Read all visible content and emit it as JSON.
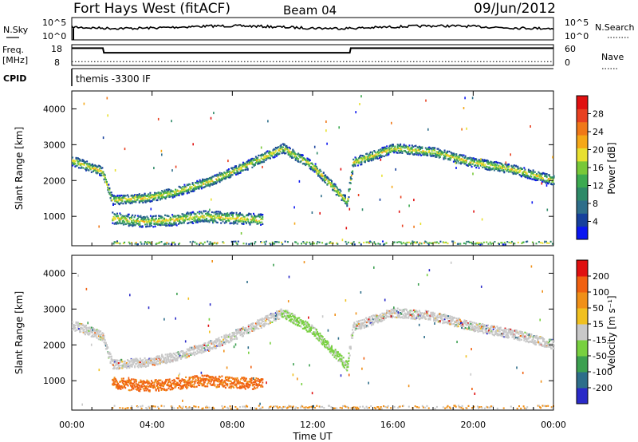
{
  "header": {
    "station": "Fort Hays West (fitACF)",
    "beam": "Beam 04",
    "date": "09/Jun/2012"
  },
  "strip": {
    "nsky_label": "N.Sky",
    "nsky_ticks": [
      "10^5",
      "10^0"
    ],
    "nsearch_label": "N.Search",
    "nsearch_ticks": [
      "10^5",
      "10^0"
    ],
    "freq_label": "Freq.",
    "freq_unit": "[MHz]",
    "freq_ticks": [
      "18",
      "8"
    ],
    "nave_label": "Nave",
    "nave_ticks": [
      "60",
      "0"
    ],
    "cpid_label": "CPID",
    "cpid_text": "themis -3300 IF",
    "freq_series": [
      {
        "t": 0.0,
        "v": 16.3
      },
      {
        "t": 1.55,
        "v": 16.3
      },
      {
        "t": 1.6,
        "v": 14.1
      },
      {
        "t": 13.85,
        "v": 14.1
      },
      {
        "t": 13.9,
        "v": 16.3
      },
      {
        "t": 24.0,
        "v": 16.3
      }
    ],
    "nave_level": 11
  },
  "chart_data": [
    {
      "type": "heatmap",
      "panel": "power",
      "ylabel": "Slant Range [km]",
      "ylim": [
        180,
        4500
      ],
      "yticks": [
        "4000",
        "3000",
        "2000",
        "1000"
      ],
      "xlim": [
        0,
        24
      ],
      "colorbar": {
        "label": "Power [dB]",
        "ticks": [
          "28",
          "24",
          "20",
          "16",
          "12",
          "8",
          "4"
        ],
        "colors": [
          "#0a16f0",
          "#16409c",
          "#2e6e8a",
          "#2e8a68",
          "#3caa50",
          "#78c838",
          "#e8e030",
          "#f5a818",
          "#f07818",
          "#e84020",
          "#e01010"
        ]
      },
      "echo_bands": [
        {
          "name": "main",
          "points": [
            [
              0,
              2550
            ],
            [
              1.5,
              2250
            ],
            [
              2.0,
              1450
            ],
            [
              3.5,
              1500
            ],
            [
              5.0,
              1650
            ],
            [
              7.0,
              2000
            ],
            [
              9.0,
              2500
            ],
            [
              10.5,
              2900
            ],
            [
              12.0,
              2400
            ],
            [
              13.7,
              1400
            ],
            [
              14.0,
              2500
            ],
            [
              16.0,
              2900
            ],
            [
              18.0,
              2800
            ],
            [
              20.0,
              2500
            ],
            [
              22.0,
              2300
            ],
            [
              24.0,
              2000
            ]
          ],
          "width": 260
        },
        {
          "name": "lower",
          "points": [
            [
              2.0,
              950
            ],
            [
              3.5,
              850
            ],
            [
              5.0,
              900
            ],
            [
              6.5,
              1000
            ],
            [
              8.0,
              950
            ],
            [
              9.5,
              900
            ]
          ],
          "width": 320
        },
        {
          "name": "ground",
          "points": [
            [
              2.0,
              260
            ],
            [
              8.0,
              260
            ],
            [
              14.0,
              260
            ],
            [
              24.0,
              260
            ]
          ],
          "width": 90
        }
      ]
    },
    {
      "type": "heatmap",
      "panel": "velocity",
      "ylabel": "Slant Range [km]",
      "ylim": [
        180,
        4500
      ],
      "yticks": [
        "4000",
        "3000",
        "2000",
        "1000"
      ],
      "xlim": [
        0,
        24
      ],
      "xticks": [
        "00:00",
        "04:00",
        "08:00",
        "12:00",
        "16:00",
        "20:00",
        "00:00"
      ],
      "xlabel": "Time UT",
      "colorbar": {
        "label": "Velocity [m s⁻¹]",
        "ticks": [
          "200",
          "100",
          "50",
          "15",
          "-15",
          "-50",
          "-100",
          "-200"
        ],
        "colors": [
          "#2a2ac8",
          "#2e6e8a",
          "#3ca050",
          "#78d040",
          "#c8c8c8",
          "#f0c020",
          "#f09018",
          "#f06010",
          "#e01010"
        ]
      }
    }
  ]
}
